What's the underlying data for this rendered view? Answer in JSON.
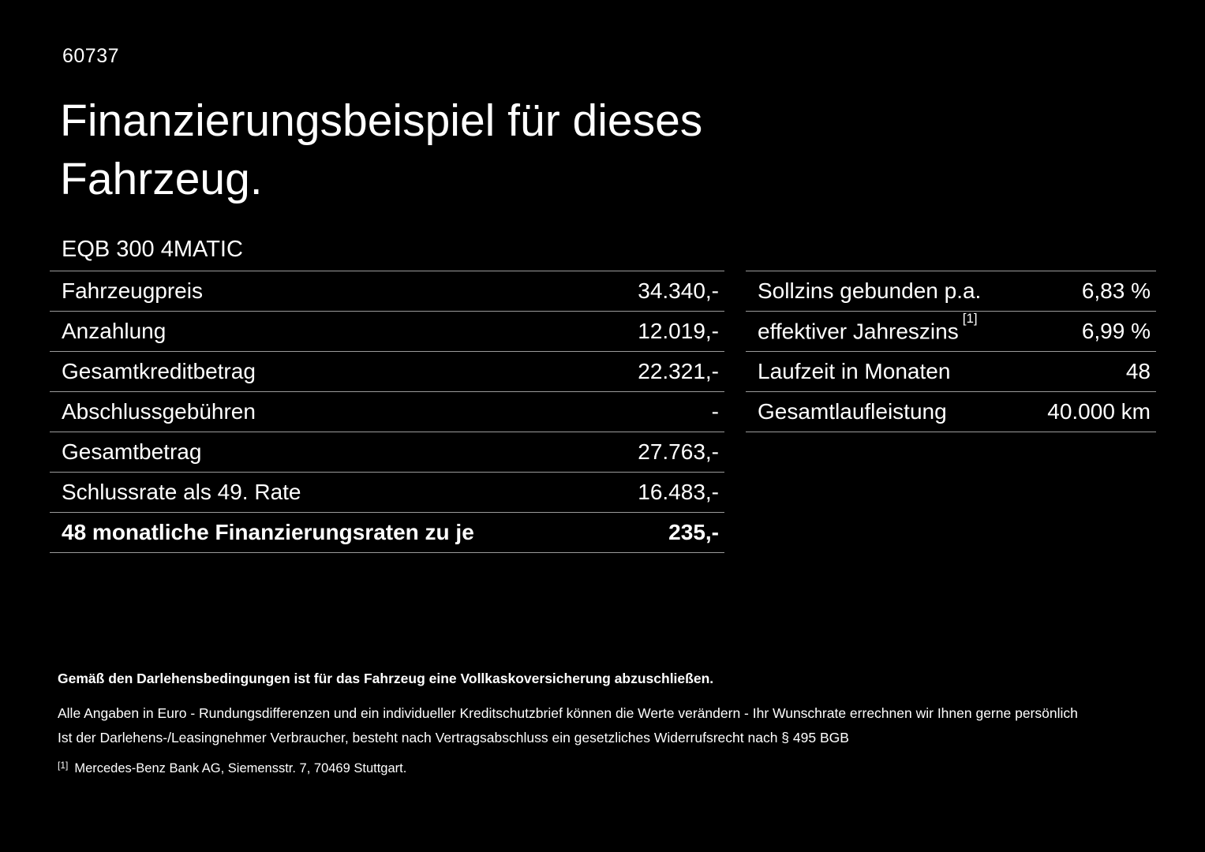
{
  "doc_number": "60737",
  "title": "Finanzierungsbeispiel für dieses Fahrzeug.",
  "model": "EQB 300 4MATIC",
  "left_table": {
    "rows": [
      {
        "label": "Fahrzeugpreis",
        "value": "34.340,-"
      },
      {
        "label": "Anzahlung",
        "value": "12.019,-"
      },
      {
        "label": "Gesamtkreditbetrag",
        "value": "22.321,-"
      },
      {
        "label": "Abschlussgebühren",
        "value": "-"
      },
      {
        "label": "Gesamtbetrag",
        "value": "27.763,-"
      },
      {
        "label": "Schlussrate als 49. Rate",
        "value": "16.483,-"
      },
      {
        "label": "48 monatliche Finanzierungsraten zu je",
        "value": "235,-"
      }
    ]
  },
  "right_table": {
    "rows": [
      {
        "label": "Sollzins gebunden p.a.",
        "marker": "",
        "value": "6,83 %"
      },
      {
        "label": "effektiver Jahreszins",
        "marker": "[1]",
        "value": "6,99 %"
      },
      {
        "label": "Laufzeit in Monaten",
        "marker": "",
        "value": "48"
      },
      {
        "label": "Gesamtlaufleistung",
        "marker": "",
        "value": "40.000 km"
      }
    ]
  },
  "footer": {
    "bold_note": "Gemäß den Darlehensbedingungen ist für das Fahrzeug eine Vollkaskoversicherung abzuschließen.",
    "note1": "Alle Angaben in Euro - Rundungsdifferenzen und ein individueller Kreditschutzbrief können die Werte verändern - Ihr Wunschrate errechnen wir Ihnen gerne persönlich",
    "note2": "Ist der Darlehens-/Leasingnehmer Verbraucher, besteht nach Vertragsabschluss ein gesetzliches Widerrufsrecht nach § 495 BGB",
    "ref_marker": "[1]",
    "ref_text": "Mercedes-Benz Bank AG, Siemensstr. 7, 70469 Stuttgart."
  },
  "colors": {
    "background": "#000000",
    "text": "#ffffff",
    "divider": "#9b9b9b"
  }
}
